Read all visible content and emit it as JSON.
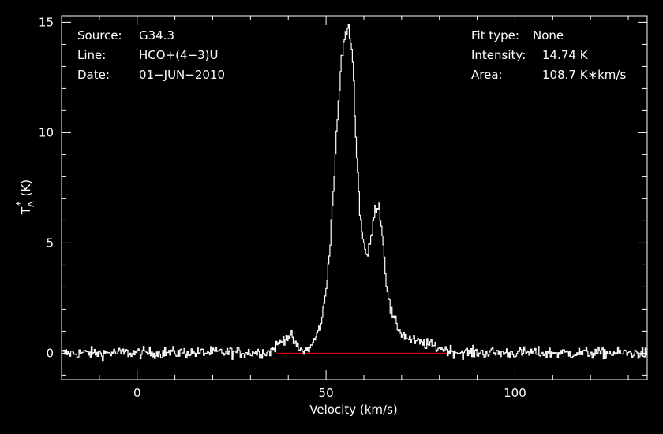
{
  "chart_data": {
    "type": "line",
    "xlabel": "Velocity (km/s)",
    "ylabel": "T",
    "ylabel_sub": "A",
    "ylabel_sup": "*",
    "ylabel_unit": "(K)",
    "xlim": [
      -20,
      135
    ],
    "ylim": [
      -1.2,
      15.3
    ],
    "x_ticks": [
      0,
      50,
      100
    ],
    "y_ticks": [
      0,
      5,
      10,
      15
    ],
    "grid": false,
    "colors": {
      "background": "#000000",
      "axis": "#ffffff",
      "spectrum": "#ffffff",
      "baseline": "#ff0000"
    },
    "annotations_left": [
      {
        "label": "Source:",
        "value": "G34.3"
      },
      {
        "label": "Line:",
        "value": "HCO+(4−3)U"
      },
      {
        "label": "Date:",
        "value": "01−JUN−2010"
      }
    ],
    "annotations_right": [
      {
        "label": "Fit type:",
        "value": "None"
      },
      {
        "label": "Intensity:",
        "value": "14.74 K"
      },
      {
        "label": "Area:",
        "value": "108.7 K∗km/s"
      }
    ],
    "baseline": {
      "x": [
        37,
        83
      ],
      "y": 0
    },
    "series": [
      {
        "x": [
          -20,
          35,
          36,
          37,
          38,
          39,
          40,
          41,
          42,
          43,
          44,
          45,
          46,
          47,
          48,
          49,
          50,
          51,
          52,
          53,
          54,
          55,
          56,
          57,
          58,
          59,
          60,
          61,
          62,
          63,
          64,
          65,
          66,
          67,
          68,
          69,
          70,
          72,
          74,
          76,
          78,
          80,
          82,
          84,
          86,
          135
        ],
        "y": [
          0,
          0.05,
          0.2,
          0.35,
          0.5,
          0.7,
          0.8,
          0.7,
          0.35,
          0.15,
          0.1,
          0.15,
          0.3,
          0.6,
          1.0,
          1.6,
          2.8,
          4.8,
          7.5,
          10.5,
          13.2,
          14.4,
          14.7,
          13.6,
          9.5,
          6.3,
          5.0,
          4.3,
          5.3,
          6.5,
          6.8,
          5.3,
          3.2,
          2.0,
          1.5,
          1.2,
          0.9,
          0.65,
          0.5,
          0.45,
          0.35,
          0.25,
          0.15,
          0.08,
          0.03,
          0
        ]
      }
    ],
    "noise_rms": 0.13,
    "channel_width": 0.27
  }
}
